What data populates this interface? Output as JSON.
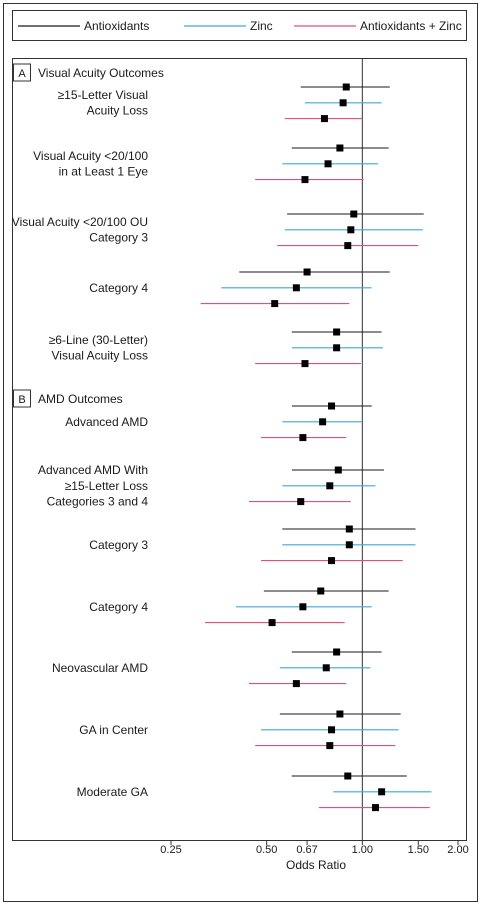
{
  "legend": [
    {
      "name": "Antioxidants",
      "color": "#1a1a1a"
    },
    {
      "name": "Zinc",
      "color": "#3fa9d8"
    },
    {
      "name": "Antioxidants + Zinc",
      "color": "#e0507a"
    }
  ],
  "chart_data": {
    "type": "forest",
    "xlabel": "Odds Ratio",
    "xscale": "log",
    "xlim": [
      0.25,
      2.0
    ],
    "xticks": [
      "0.25",
      "0.50",
      "0.67",
      "1.00",
      "1.50",
      "2.00"
    ],
    "reference_line": 1.0,
    "sections": [
      {
        "letter": "A",
        "title": "Visual Acuity Outcomes"
      },
      {
        "letter": "B",
        "title": "AMD Outcomes"
      }
    ],
    "groups": [
      {
        "section": 0,
        "label": [
          "≥15-Letter Visual",
          "Acuity Loss"
        ],
        "rows": [
          {
            "series": "Antioxidants",
            "or": 0.89,
            "lo": 0.64,
            "hi": 1.22
          },
          {
            "series": "Zinc",
            "or": 0.87,
            "lo": 0.66,
            "hi": 1.15
          },
          {
            "series": "Antioxidants + Zinc",
            "or": 0.76,
            "lo": 0.57,
            "hi": 1.0
          }
        ]
      },
      {
        "section": 0,
        "label": [
          "Visual Acuity <20/100",
          "in at Least 1 Eye"
        ],
        "rows": [
          {
            "series": "Antioxidants",
            "or": 0.85,
            "lo": 0.6,
            "hi": 1.21
          },
          {
            "series": "Zinc",
            "or": 0.78,
            "lo": 0.56,
            "hi": 1.12
          },
          {
            "series": "Antioxidants + Zinc",
            "or": 0.66,
            "lo": 0.46,
            "hi": 1.01
          }
        ]
      },
      {
        "section": 0,
        "label": [
          "Visual Acuity <20/100 OU",
          "Category 3"
        ],
        "rows": [
          {
            "series": "Antioxidants",
            "or": 0.94,
            "lo": 0.58,
            "hi": 1.56
          },
          {
            "series": "Zinc",
            "or": 0.92,
            "lo": 0.57,
            "hi": 1.55
          },
          {
            "series": "Antioxidants + Zinc",
            "or": 0.9,
            "lo": 0.54,
            "hi": 1.5
          }
        ]
      },
      {
        "section": 0,
        "label": [
          "Category 4"
        ],
        "rows": [
          {
            "series": "Antioxidants",
            "or": 0.67,
            "lo": 0.41,
            "hi": 1.22
          },
          {
            "series": "Zinc",
            "or": 0.62,
            "lo": 0.36,
            "hi": 1.07
          },
          {
            "series": "Antioxidants + Zinc",
            "or": 0.53,
            "lo": 0.31,
            "hi": 0.91
          }
        ]
      },
      {
        "section": 0,
        "label": [
          "≥6-Line (30-Letter)",
          "Visual Acuity Loss"
        ],
        "rows": [
          {
            "series": "Antioxidants",
            "or": 0.83,
            "lo": 0.6,
            "hi": 1.15
          },
          {
            "series": "Zinc",
            "or": 0.83,
            "lo": 0.6,
            "hi": 1.16
          },
          {
            "series": "Antioxidants + Zinc",
            "or": 0.66,
            "lo": 0.46,
            "hi": 0.99
          }
        ]
      },
      {
        "section": 1,
        "label": [
          "Advanced AMD"
        ],
        "rows": [
          {
            "series": "Antioxidants",
            "or": 0.8,
            "lo": 0.6,
            "hi": 1.07
          },
          {
            "series": "Zinc",
            "or": 0.75,
            "lo": 0.56,
            "hi": 1.0
          },
          {
            "series": "Antioxidants + Zinc",
            "or": 0.65,
            "lo": 0.48,
            "hi": 0.89
          }
        ]
      },
      {
        "section": 1,
        "label": [
          "Advanced AMD With",
          "≥15-Letter Loss",
          "Categories 3 and 4"
        ],
        "rows": [
          {
            "series": "Antioxidants",
            "or": 0.84,
            "lo": 0.6,
            "hi": 1.17
          },
          {
            "series": "Zinc",
            "or": 0.79,
            "lo": 0.56,
            "hi": 1.1
          },
          {
            "series": "Antioxidants + Zinc",
            "or": 0.64,
            "lo": 0.44,
            "hi": 0.92
          }
        ]
      },
      {
        "section": 1,
        "label": [
          "Category 3"
        ],
        "rows": [
          {
            "series": "Antioxidants",
            "or": 0.91,
            "lo": 0.56,
            "hi": 1.47
          },
          {
            "series": "Zinc",
            "or": 0.91,
            "lo": 0.56,
            "hi": 1.47
          },
          {
            "series": "Antioxidants + Zinc",
            "or": 0.8,
            "lo": 0.48,
            "hi": 1.34
          }
        ]
      },
      {
        "section": 1,
        "label": [
          "Category 4"
        ],
        "rows": [
          {
            "series": "Antioxidants",
            "or": 0.74,
            "lo": 0.49,
            "hi": 1.21
          },
          {
            "series": "Zinc",
            "or": 0.65,
            "lo": 0.4,
            "hi": 1.07
          },
          {
            "series": "Antioxidants + Zinc",
            "or": 0.52,
            "lo": 0.32,
            "hi": 0.88
          }
        ]
      },
      {
        "section": 1,
        "label": [
          "Neovascular AMD"
        ],
        "rows": [
          {
            "series": "Antioxidants",
            "or": 0.83,
            "lo": 0.6,
            "hi": 1.15
          },
          {
            "series": "Zinc",
            "or": 0.77,
            "lo": 0.55,
            "hi": 1.06
          },
          {
            "series": "Antioxidants + Zinc",
            "or": 0.62,
            "lo": 0.44,
            "hi": 0.89
          }
        ]
      },
      {
        "section": 1,
        "label": [
          "GA in Center"
        ],
        "rows": [
          {
            "series": "Antioxidants",
            "or": 0.85,
            "lo": 0.55,
            "hi": 1.32
          },
          {
            "series": "Zinc",
            "or": 0.8,
            "lo": 0.48,
            "hi": 1.3
          },
          {
            "series": "Antioxidants + Zinc",
            "or": 0.79,
            "lo": 0.46,
            "hi": 1.27
          }
        ]
      },
      {
        "section": 1,
        "label": [
          "Moderate GA"
        ],
        "rows": [
          {
            "series": "Antioxidants",
            "or": 0.9,
            "lo": 0.6,
            "hi": 1.38
          },
          {
            "series": "Zinc",
            "or": 1.15,
            "lo": 0.81,
            "hi": 1.65
          },
          {
            "series": "Antioxidants + Zinc",
            "or": 1.1,
            "lo": 0.73,
            "hi": 1.63
          }
        ]
      }
    ]
  }
}
